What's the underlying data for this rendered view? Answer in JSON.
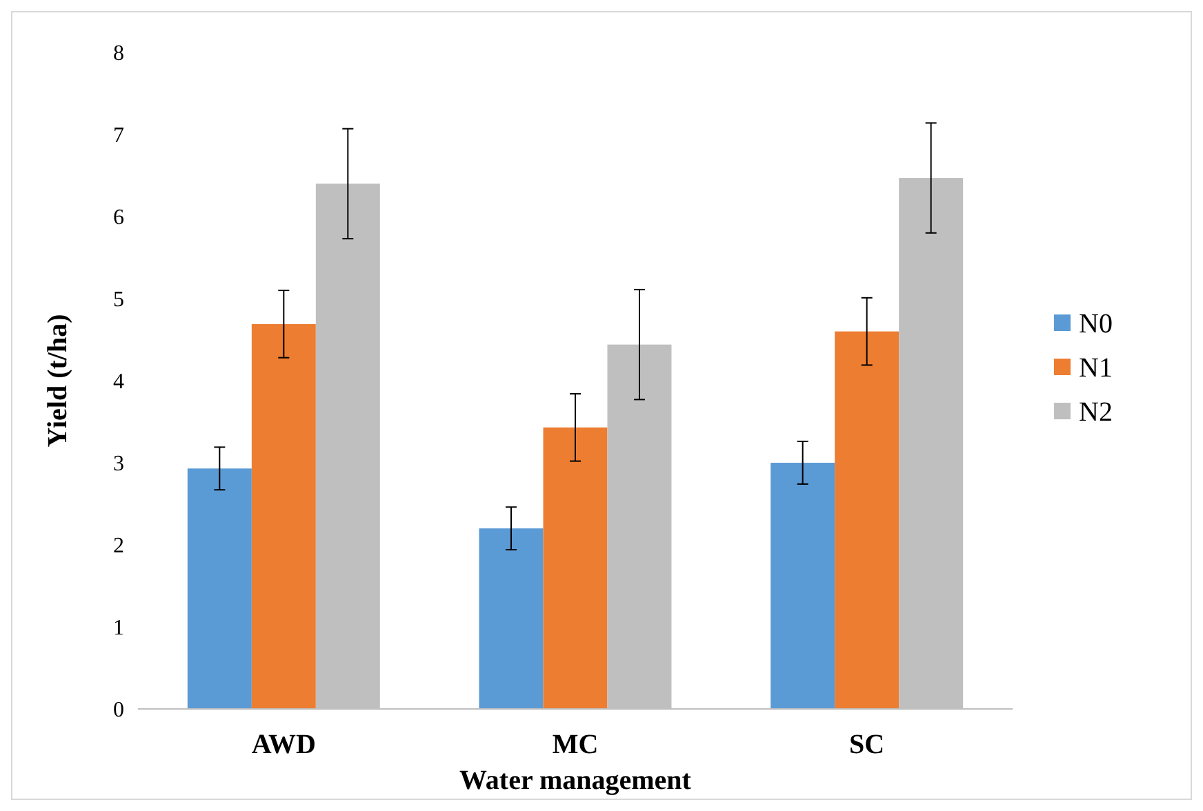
{
  "chart_data": {
    "type": "bar",
    "xlabel": "Water management",
    "ylabel": "Yield (t/ha)",
    "categories": [
      "AWD",
      "MC",
      "SC"
    ],
    "series": [
      {
        "name": "N0",
        "color": "#5b9bd5",
        "values": [
          2.93,
          2.2,
          3.0
        ],
        "errors": [
          0.26,
          0.26,
          0.26
        ]
      },
      {
        "name": "N1",
        "color": "#ed7d31",
        "values": [
          4.69,
          3.43,
          4.6
        ],
        "errors": [
          0.41,
          0.41,
          0.41
        ]
      },
      {
        "name": "N2",
        "color": "#bfbfbf",
        "values": [
          6.4,
          4.44,
          6.47
        ],
        "errors": [
          0.67,
          0.67,
          0.67
        ]
      }
    ],
    "ylim": [
      0,
      8
    ],
    "yticks": [
      0,
      1,
      2,
      3,
      4,
      5,
      6,
      7,
      8
    ],
    "grid": false,
    "legend": "right"
  }
}
